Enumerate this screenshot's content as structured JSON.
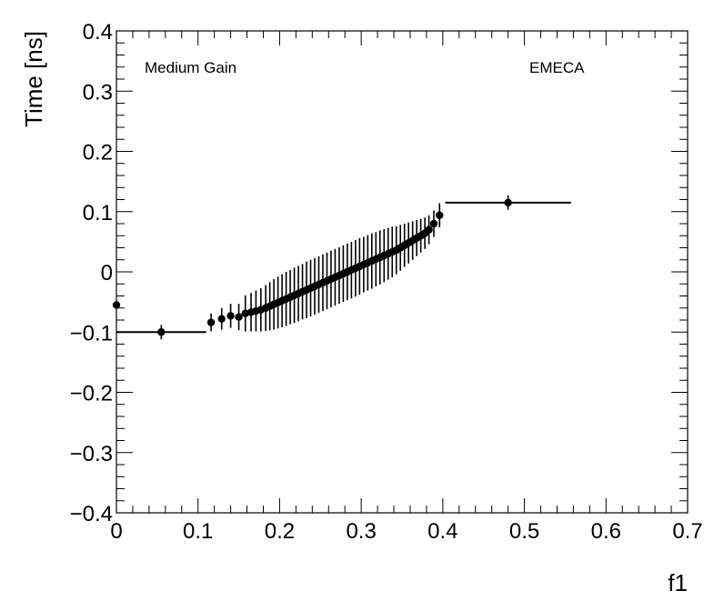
{
  "chart_data": {
    "type": "scatter",
    "xlabel": "f1",
    "ylabel": "Time [ns]",
    "xlim": [
      0,
      0.7
    ],
    "ylim": [
      -0.4,
      0.4
    ],
    "grid": false,
    "annotations": {
      "left": "Medium Gain",
      "right": "EMECA"
    },
    "x_ticks": [
      0,
      0.1,
      0.2,
      0.3,
      0.4,
      0.5,
      0.6,
      0.7
    ],
    "x_tick_labels": [
      "0",
      "0.1",
      "0.2",
      "0.3",
      "0.4",
      "0.5",
      "0.6",
      "0.7"
    ],
    "y_ticks": [
      -0.4,
      -0.3,
      -0.2,
      -0.1,
      0,
      0.1,
      0.2,
      0.3,
      0.4
    ],
    "y_tick_labels": [
      "−0.4",
      "−0.3",
      "−0.2",
      "−0.1",
      "0",
      "0.1",
      "0.2",
      "0.3",
      "0.4"
    ],
    "points": [
      {
        "x": 0.0,
        "y": -0.055,
        "xerr": 0.0,
        "yerr": 0.0
      },
      {
        "x": 0.055,
        "y": -0.1,
        "xerr": 0.055,
        "yerr": 0.012
      },
      {
        "x": 0.116,
        "y": -0.084,
        "xerr": 0.0,
        "yerr": 0.015
      },
      {
        "x": 0.129,
        "y": -0.078,
        "xerr": 0.0,
        "yerr": 0.018
      },
      {
        "x": 0.14,
        "y": -0.073,
        "xerr": 0.0,
        "yerr": 0.02
      },
      {
        "x": 0.15,
        "y": -0.075,
        "xerr": 0.0,
        "yerr": 0.022
      },
      {
        "x": 0.158,
        "y": -0.069,
        "xerr": 0.0,
        "yerr": 0.03
      },
      {
        "x": 0.165,
        "y": -0.067,
        "xerr": 0.0,
        "yerr": 0.032
      },
      {
        "x": 0.171,
        "y": -0.065,
        "xerr": 0.0,
        "yerr": 0.034
      },
      {
        "x": 0.177,
        "y": -0.063,
        "xerr": 0.0,
        "yerr": 0.036
      },
      {
        "x": 0.183,
        "y": -0.06,
        "xerr": 0.0,
        "yerr": 0.038
      },
      {
        "x": 0.188,
        "y": -0.057,
        "xerr": 0.0,
        "yerr": 0.04
      },
      {
        "x": 0.193,
        "y": -0.054,
        "xerr": 0.0,
        "yerr": 0.042
      },
      {
        "x": 0.198,
        "y": -0.051,
        "xerr": 0.0,
        "yerr": 0.043
      },
      {
        "x": 0.203,
        "y": -0.048,
        "xerr": 0.0,
        "yerr": 0.044
      },
      {
        "x": 0.208,
        "y": -0.045,
        "xerr": 0.0,
        "yerr": 0.045
      },
      {
        "x": 0.213,
        "y": -0.042,
        "xerr": 0.0,
        "yerr": 0.045
      },
      {
        "x": 0.218,
        "y": -0.039,
        "xerr": 0.0,
        "yerr": 0.046
      },
      {
        "x": 0.223,
        "y": -0.036,
        "xerr": 0.0,
        "yerr": 0.046
      },
      {
        "x": 0.228,
        "y": -0.033,
        "xerr": 0.0,
        "yerr": 0.046
      },
      {
        "x": 0.233,
        "y": -0.03,
        "xerr": 0.0,
        "yerr": 0.047
      },
      {
        "x": 0.238,
        "y": -0.027,
        "xerr": 0.0,
        "yerr": 0.047
      },
      {
        "x": 0.243,
        "y": -0.024,
        "xerr": 0.0,
        "yerr": 0.047
      },
      {
        "x": 0.248,
        "y": -0.021,
        "xerr": 0.0,
        "yerr": 0.047
      },
      {
        "x": 0.253,
        "y": -0.018,
        "xerr": 0.0,
        "yerr": 0.047
      },
      {
        "x": 0.258,
        "y": -0.015,
        "xerr": 0.0,
        "yerr": 0.047
      },
      {
        "x": 0.263,
        "y": -0.012,
        "xerr": 0.0,
        "yerr": 0.047
      },
      {
        "x": 0.268,
        "y": -0.009,
        "xerr": 0.0,
        "yerr": 0.047
      },
      {
        "x": 0.273,
        "y": -0.006,
        "xerr": 0.0,
        "yerr": 0.047
      },
      {
        "x": 0.278,
        "y": -0.003,
        "xerr": 0.0,
        "yerr": 0.047
      },
      {
        "x": 0.283,
        "y": 0.0,
        "xerr": 0.0,
        "yerr": 0.047
      },
      {
        "x": 0.288,
        "y": 0.003,
        "xerr": 0.0,
        "yerr": 0.047
      },
      {
        "x": 0.293,
        "y": 0.006,
        "xerr": 0.0,
        "yerr": 0.047
      },
      {
        "x": 0.298,
        "y": 0.009,
        "xerr": 0.0,
        "yerr": 0.047
      },
      {
        "x": 0.303,
        "y": 0.012,
        "xerr": 0.0,
        "yerr": 0.046
      },
      {
        "x": 0.308,
        "y": 0.015,
        "xerr": 0.0,
        "yerr": 0.046
      },
      {
        "x": 0.313,
        "y": 0.018,
        "xerr": 0.0,
        "yerr": 0.046
      },
      {
        "x": 0.318,
        "y": 0.021,
        "xerr": 0.0,
        "yerr": 0.045
      },
      {
        "x": 0.323,
        "y": 0.024,
        "xerr": 0.0,
        "yerr": 0.045
      },
      {
        "x": 0.328,
        "y": 0.027,
        "xerr": 0.0,
        "yerr": 0.044
      },
      {
        "x": 0.333,
        "y": 0.03,
        "xerr": 0.0,
        "yerr": 0.043
      },
      {
        "x": 0.338,
        "y": 0.033,
        "xerr": 0.0,
        "yerr": 0.042
      },
      {
        "x": 0.343,
        "y": 0.036,
        "xerr": 0.0,
        "yerr": 0.04
      },
      {
        "x": 0.348,
        "y": 0.04,
        "xerr": 0.0,
        "yerr": 0.038
      },
      {
        "x": 0.353,
        "y": 0.044,
        "xerr": 0.0,
        "yerr": 0.036
      },
      {
        "x": 0.358,
        "y": 0.048,
        "xerr": 0.0,
        "yerr": 0.034
      },
      {
        "x": 0.363,
        "y": 0.052,
        "xerr": 0.0,
        "yerr": 0.032
      },
      {
        "x": 0.368,
        "y": 0.056,
        "xerr": 0.0,
        "yerr": 0.03
      },
      {
        "x": 0.373,
        "y": 0.06,
        "xerr": 0.0,
        "yerr": 0.028
      },
      {
        "x": 0.378,
        "y": 0.064,
        "xerr": 0.0,
        "yerr": 0.026
      },
      {
        "x": 0.383,
        "y": 0.07,
        "xerr": 0.0,
        "yerr": 0.024
      },
      {
        "x": 0.389,
        "y": 0.08,
        "xerr": 0.0,
        "yerr": 0.022
      },
      {
        "x": 0.396,
        "y": 0.094,
        "xerr": 0.0,
        "yerr": 0.02
      },
      {
        "x": 0.48,
        "y": 0.115,
        "xerr": 0.077,
        "yerr": 0.012
      }
    ]
  }
}
